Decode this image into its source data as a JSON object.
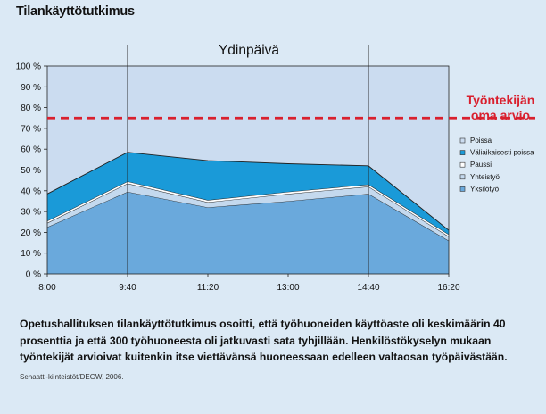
{
  "page": {
    "title": "Tilankäyttötutkimus",
    "caption": "Opetushallituksen tilankäyttötutkimus osoitti, että työhuoneiden käyttöaste oli keskimäärin 40 prosenttia ja että 300 työhuoneesta oli jatkuvasti sata tyhjillään. Henkilöstökyselyn mukaan työntekijät arvioivat kuitenkin itse viettävänsä huoneessaan edelleen valtaosan työpäivästään.",
    "source": "Senaatti-kiinteistöt/DEGW, 2006."
  },
  "chart_data": {
    "type": "area",
    "stacked": true,
    "title": "Ydinpäivä",
    "x": [
      "8:00",
      "9:40",
      "11:20",
      "13:00",
      "14:40",
      "16:20"
    ],
    "ylim": [
      0,
      100
    ],
    "yticks": [
      "0 %",
      "10 %",
      "20 %",
      "30 %",
      "40 %",
      "50 %",
      "60 %",
      "70 %",
      "80 %",
      "90 %",
      "100 %"
    ],
    "ytick_values": [
      0,
      10,
      20,
      30,
      40,
      50,
      60,
      70,
      80,
      90,
      100
    ],
    "series": [
      {
        "name": "Yksilötyö",
        "color": "#6aa9dc",
        "values": [
          22.5,
          39.5,
          32,
          35,
          38.5,
          16
        ]
      },
      {
        "name": "Yhteistyö",
        "color": "#c4d9ee",
        "values": [
          2,
          4,
          2.5,
          3.5,
          3.5,
          2
        ]
      },
      {
        "name": "Paussi",
        "color": "#ffffff",
        "values": [
          1,
          1,
          1,
          1,
          1,
          1
        ]
      },
      {
        "name": "Väliaikaisesti poissa",
        "color": "#1a9ad8",
        "values": [
          13,
          14,
          19,
          13.5,
          9,
          2
        ]
      },
      {
        "name": "Poissa",
        "color": "#cbdcf0",
        "values": [
          61.5,
          41.5,
          45.5,
          47,
          48,
          79
        ]
      }
    ],
    "reference_line": {
      "value": 75,
      "label_line1": "Työntekijän",
      "label_line2": "oma arvio",
      "color": "#d9202e"
    },
    "vertical_markers": [
      "9:40",
      "14:40"
    ],
    "legend_position": "right",
    "plot_background": "#cbdcf0"
  }
}
